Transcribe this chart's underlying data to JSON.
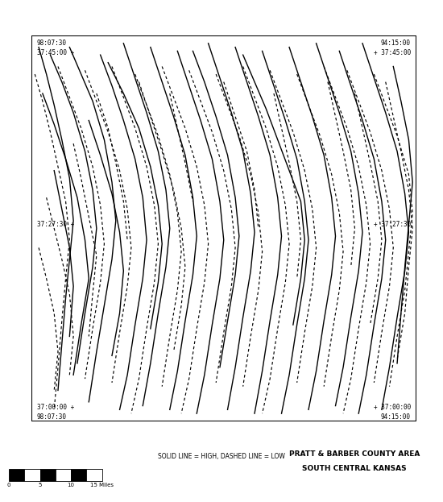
{
  "corner_labels": {
    "top_left_line1": "98:07:30",
    "top_left_line2": "37:45:00 +",
    "top_right_line1": "94:15:00",
    "top_right_line2": "+ 37:45:00",
    "mid_left": "37:27:30 +",
    "mid_right": "+ 37:27:30",
    "bot_left_line1": "37:00:00 +",
    "bot_left_line2": "98:07:30",
    "bot_right_line1": "+ 37:00:00",
    "bot_right_line2": "94:15:00"
  },
  "legend_text": "SOLID LINE = HIGH, DASHED LINE = LOW",
  "region_text1": "PRATT & BARBER COUNTY AREA",
  "region_text2": "SOUTH CENTRAL KANSAS",
  "background_color": "#ffffff",
  "border_color": "#000000",
  "line_color": "#000000",
  "solid_lines": [
    [
      [
        2,
        97
      ],
      [
        4,
        90
      ],
      [
        6,
        82
      ],
      [
        8,
        73
      ],
      [
        10,
        63
      ],
      [
        11,
        52
      ],
      [
        10,
        42
      ],
      [
        9,
        32
      ],
      [
        8,
        20
      ],
      [
        7,
        8
      ]
    ],
    [
      [
        5,
        95
      ],
      [
        8,
        88
      ],
      [
        11,
        80
      ],
      [
        14,
        70
      ],
      [
        16,
        60
      ],
      [
        17,
        50
      ],
      [
        16,
        40
      ],
      [
        14,
        28
      ],
      [
        12,
        15
      ]
    ],
    [
      [
        10,
        97
      ],
      [
        13,
        90
      ],
      [
        16,
        83
      ],
      [
        19,
        73
      ],
      [
        21,
        62
      ],
      [
        22,
        52
      ],
      [
        21,
        42
      ],
      [
        19,
        30
      ],
      [
        17,
        18
      ],
      [
        15,
        5
      ]
    ],
    [
      [
        18,
        95
      ],
      [
        21,
        87
      ],
      [
        24,
        78
      ],
      [
        27,
        68
      ],
      [
        29,
        58
      ],
      [
        30,
        47
      ],
      [
        29,
        37
      ],
      [
        27,
        25
      ],
      [
        25,
        12
      ],
      [
        23,
        3
      ]
    ],
    [
      [
        24,
        98
      ],
      [
        27,
        89
      ],
      [
        30,
        80
      ],
      [
        33,
        70
      ],
      [
        35,
        60
      ],
      [
        36,
        50
      ],
      [
        35,
        40
      ],
      [
        33,
        28
      ],
      [
        31,
        15
      ],
      [
        29,
        4
      ]
    ],
    [
      [
        31,
        97
      ],
      [
        34,
        88
      ],
      [
        37,
        79
      ],
      [
        40,
        69
      ],
      [
        42,
        58
      ],
      [
        43,
        48
      ],
      [
        42,
        38
      ],
      [
        40,
        26
      ],
      [
        38,
        13
      ],
      [
        36,
        3
      ]
    ],
    [
      [
        38,
        96
      ],
      [
        41,
        87
      ],
      [
        44,
        78
      ],
      [
        47,
        68
      ],
      [
        49,
        57
      ],
      [
        50,
        47
      ],
      [
        49,
        37
      ],
      [
        47,
        25
      ],
      [
        45,
        12
      ],
      [
        43,
        2
      ]
    ],
    [
      [
        46,
        98
      ],
      [
        49,
        89
      ],
      [
        52,
        80
      ],
      [
        55,
        70
      ],
      [
        57,
        59
      ],
      [
        58,
        49
      ],
      [
        57,
        39
      ],
      [
        55,
        27
      ],
      [
        53,
        14
      ],
      [
        51,
        3
      ]
    ],
    [
      [
        53,
        97
      ],
      [
        56,
        88
      ],
      [
        59,
        79
      ],
      [
        62,
        69
      ],
      [
        64,
        58
      ],
      [
        65,
        48
      ],
      [
        64,
        38
      ],
      [
        62,
        26
      ],
      [
        60,
        13
      ],
      [
        58,
        2
      ]
    ],
    [
      [
        60,
        96
      ],
      [
        63,
        87
      ],
      [
        66,
        78
      ],
      [
        69,
        68
      ],
      [
        71,
        57
      ],
      [
        72,
        47
      ],
      [
        71,
        37
      ],
      [
        69,
        25
      ],
      [
        67,
        12
      ],
      [
        65,
        2
      ]
    ],
    [
      [
        67,
        97
      ],
      [
        70,
        88
      ],
      [
        73,
        79
      ],
      [
        76,
        69
      ],
      [
        78,
        58
      ],
      [
        79,
        48
      ],
      [
        78,
        38
      ],
      [
        76,
        26
      ],
      [
        74,
        13
      ],
      [
        72,
        3
      ]
    ],
    [
      [
        74,
        98
      ],
      [
        77,
        89
      ],
      [
        80,
        80
      ],
      [
        83,
        70
      ],
      [
        85,
        59
      ],
      [
        86,
        49
      ],
      [
        85,
        39
      ],
      [
        83,
        27
      ],
      [
        81,
        14
      ],
      [
        79,
        4
      ]
    ],
    [
      [
        80,
        96
      ],
      [
        83,
        87
      ],
      [
        86,
        78
      ],
      [
        89,
        68
      ],
      [
        91,
        57
      ],
      [
        92,
        47
      ],
      [
        91,
        37
      ],
      [
        89,
        25
      ],
      [
        87,
        12
      ],
      [
        85,
        2
      ]
    ],
    [
      [
        86,
        98
      ],
      [
        89,
        89
      ],
      [
        92,
        80
      ],
      [
        95,
        70
      ],
      [
        97,
        59
      ],
      [
        98,
        49
      ],
      [
        97,
        39
      ],
      [
        95,
        27
      ],
      [
        93,
        14
      ],
      [
        91,
        3
      ]
    ],
    [
      [
        3,
        85
      ],
      [
        6,
        77
      ],
      [
        9,
        68
      ],
      [
        12,
        58
      ],
      [
        14,
        47
      ],
      [
        15,
        37
      ],
      [
        13,
        25
      ],
      [
        11,
        12
      ]
    ],
    [
      [
        55,
        95
      ],
      [
        58,
        88
      ],
      [
        61,
        81
      ],
      [
        64,
        73
      ],
      [
        67,
        65
      ],
      [
        70,
        57
      ],
      [
        71,
        47
      ],
      [
        70,
        37
      ],
      [
        68,
        25
      ]
    ],
    [
      [
        20,
        93
      ],
      [
        24,
        85
      ],
      [
        28,
        76
      ],
      [
        31,
        66
      ],
      [
        33,
        56
      ],
      [
        34,
        46
      ],
      [
        33,
        36
      ],
      [
        31,
        24
      ]
    ],
    [
      [
        42,
        96
      ],
      [
        45,
        88
      ],
      [
        48,
        79
      ],
      [
        51,
        69
      ],
      [
        53,
        58
      ],
      [
        54,
        48
      ],
      [
        53,
        38
      ],
      [
        51,
        26
      ],
      [
        49,
        14
      ]
    ],
    [
      [
        15,
        78
      ],
      [
        18,
        69
      ],
      [
        21,
        59
      ],
      [
        23,
        49
      ],
      [
        24,
        39
      ],
      [
        23,
        28
      ],
      [
        21,
        17
      ]
    ],
    [
      [
        6,
        65
      ],
      [
        8,
        55
      ],
      [
        10,
        45
      ],
      [
        11,
        35
      ],
      [
        10,
        22
      ]
    ],
    [
      [
        94,
        92
      ],
      [
        96,
        83
      ],
      [
        98,
        73
      ],
      [
        99,
        62
      ],
      [
        98,
        51
      ],
      [
        97,
        40
      ],
      [
        96,
        28
      ],
      [
        95,
        15
      ]
    ]
  ],
  "dashed_lines": [
    [
      [
        1,
        90
      ],
      [
        3,
        83
      ],
      [
        5,
        75
      ],
      [
        7,
        66
      ],
      [
        9,
        57
      ],
      [
        10,
        47
      ],
      [
        9,
        37
      ],
      [
        8,
        26
      ],
      [
        7,
        14
      ],
      [
        6,
        3
      ]
    ],
    [
      [
        7,
        92
      ],
      [
        10,
        84
      ],
      [
        13,
        76
      ],
      [
        16,
        66
      ],
      [
        18,
        56
      ],
      [
        19,
        46
      ],
      [
        18,
        36
      ],
      [
        16,
        24
      ],
      [
        14,
        11
      ]
    ],
    [
      [
        14,
        91
      ],
      [
        17,
        83
      ],
      [
        20,
        75
      ],
      [
        23,
        65
      ],
      [
        25,
        55
      ],
      [
        26,
        45
      ],
      [
        25,
        35
      ],
      [
        23,
        23
      ],
      [
        21,
        10
      ]
    ],
    [
      [
        21,
        92
      ],
      [
        24,
        84
      ],
      [
        27,
        76
      ],
      [
        30,
        66
      ],
      [
        32,
        56
      ],
      [
        33,
        46
      ],
      [
        32,
        36
      ],
      [
        30,
        24
      ],
      [
        28,
        11
      ],
      [
        26,
        2
      ]
    ],
    [
      [
        27,
        90
      ],
      [
        30,
        82
      ],
      [
        33,
        74
      ],
      [
        36,
        64
      ],
      [
        38,
        54
      ],
      [
        39,
        44
      ],
      [
        38,
        34
      ],
      [
        36,
        22
      ],
      [
        34,
        9
      ]
    ],
    [
      [
        34,
        92
      ],
      [
        37,
        84
      ],
      [
        40,
        76
      ],
      [
        43,
        66
      ],
      [
        45,
        56
      ],
      [
        46,
        46
      ],
      [
        45,
        36
      ],
      [
        43,
        24
      ],
      [
        41,
        11
      ],
      [
        39,
        2
      ]
    ],
    [
      [
        41,
        91
      ],
      [
        44,
        83
      ],
      [
        47,
        75
      ],
      [
        50,
        65
      ],
      [
        52,
        55
      ],
      [
        53,
        45
      ],
      [
        52,
        35
      ],
      [
        50,
        23
      ],
      [
        48,
        10
      ]
    ],
    [
      [
        48,
        90
      ],
      [
        51,
        82
      ],
      [
        54,
        74
      ],
      [
        57,
        64
      ],
      [
        59,
        54
      ],
      [
        60,
        44
      ],
      [
        59,
        34
      ],
      [
        57,
        22
      ],
      [
        55,
        9
      ]
    ],
    [
      [
        55,
        92
      ],
      [
        58,
        84
      ],
      [
        61,
        76
      ],
      [
        64,
        66
      ],
      [
        66,
        56
      ],
      [
        67,
        46
      ],
      [
        66,
        36
      ],
      [
        64,
        24
      ],
      [
        62,
        11
      ],
      [
        60,
        2
      ]
    ],
    [
      [
        62,
        91
      ],
      [
        65,
        83
      ],
      [
        68,
        75
      ],
      [
        71,
        65
      ],
      [
        73,
        55
      ],
      [
        74,
        45
      ],
      [
        73,
        35
      ],
      [
        71,
        23
      ],
      [
        69,
        10
      ]
    ],
    [
      [
        69,
        90
      ],
      [
        72,
        82
      ],
      [
        75,
        74
      ],
      [
        78,
        64
      ],
      [
        80,
        54
      ],
      [
        81,
        44
      ],
      [
        80,
        34
      ],
      [
        78,
        22
      ],
      [
        76,
        9
      ]
    ],
    [
      [
        76,
        92
      ],
      [
        79,
        84
      ],
      [
        82,
        76
      ],
      [
        85,
        66
      ],
      [
        87,
        56
      ],
      [
        88,
        46
      ],
      [
        87,
        36
      ],
      [
        85,
        24
      ],
      [
        83,
        11
      ],
      [
        81,
        2
      ]
    ],
    [
      [
        82,
        91
      ],
      [
        85,
        83
      ],
      [
        88,
        75
      ],
      [
        91,
        65
      ],
      [
        93,
        55
      ],
      [
        94,
        45
      ],
      [
        93,
        35
      ],
      [
        91,
        23
      ],
      [
        89,
        10
      ]
    ],
    [
      [
        89,
        90
      ],
      [
        92,
        82
      ],
      [
        95,
        74
      ],
      [
        98,
        64
      ],
      [
        99,
        54
      ],
      [
        98,
        44
      ],
      [
        97,
        34
      ],
      [
        95,
        22
      ],
      [
        93,
        9
      ]
    ],
    [
      [
        4,
        58
      ],
      [
        6,
        50
      ],
      [
        8,
        42
      ],
      [
        10,
        33
      ],
      [
        11,
        22
      ],
      [
        10,
        12
      ]
    ],
    [
      [
        11,
        72
      ],
      [
        13,
        63
      ],
      [
        15,
        53
      ],
      [
        17,
        43
      ],
      [
        16,
        33
      ],
      [
        15,
        22
      ]
    ],
    [
      [
        2,
        45
      ],
      [
        4,
        37
      ],
      [
        6,
        28
      ],
      [
        7,
        18
      ],
      [
        6,
        8
      ]
    ],
    [
      [
        17,
        85
      ],
      [
        20,
        76
      ],
      [
        22,
        67
      ],
      [
        24,
        57
      ],
      [
        25,
        47
      ]
    ],
    [
      [
        28,
        88
      ],
      [
        31,
        79
      ],
      [
        34,
        70
      ],
      [
        37,
        60
      ],
      [
        39,
        50
      ],
      [
        40,
        40
      ],
      [
        39,
        30
      ],
      [
        37,
        18
      ]
    ],
    [
      [
        36,
        85
      ],
      [
        38,
        76
      ],
      [
        40,
        67
      ],
      [
        42,
        57
      ]
    ],
    [
      [
        50,
        88
      ],
      [
        53,
        79
      ],
      [
        56,
        70
      ],
      [
        58,
        60
      ],
      [
        59,
        50
      ]
    ],
    [
      [
        63,
        85
      ],
      [
        65,
        76
      ],
      [
        67,
        67
      ],
      [
        69,
        57
      ],
      [
        70,
        47
      ],
      [
        69,
        37
      ]
    ],
    [
      [
        77,
        88
      ],
      [
        79,
        79
      ],
      [
        81,
        70
      ],
      [
        83,
        60
      ],
      [
        84,
        50
      ],
      [
        83,
        40
      ]
    ],
    [
      [
        84,
        85
      ],
      [
        86,
        76
      ],
      [
        88,
        67
      ],
      [
        90,
        57
      ],
      [
        91,
        47
      ],
      [
        90,
        37
      ],
      [
        88,
        25
      ]
    ],
    [
      [
        92,
        88
      ],
      [
        94,
        79
      ],
      [
        96,
        70
      ],
      [
        98,
        60
      ],
      [
        99,
        50
      ],
      [
        98,
        40
      ],
      [
        97,
        28
      ],
      [
        95,
        16
      ]
    ]
  ]
}
